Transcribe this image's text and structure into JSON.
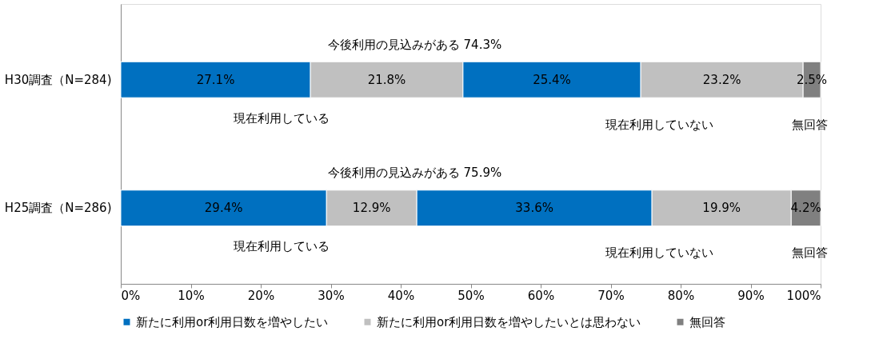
{
  "chart_data": {
    "type": "bar",
    "orientation": "horizontal",
    "stacked": true,
    "categories": [
      "H30調査（N=284)",
      "H25調査（N=286)"
    ],
    "series": [
      {
        "name": "新たに利用or利用日数を増やしたい",
        "color": "#0070c0",
        "values": [
          27.1,
          29.4
        ],
        "value_labels": [
          "27.1%",
          "29.4%"
        ]
      },
      {
        "name": "新たに利用or利用日数を増やしたいとは思わない",
        "color": "#c0c0c0",
        "values": [
          21.8,
          12.9
        ],
        "value_labels": [
          "21.8%",
          "12.9%"
        ]
      },
      {
        "color": "#0070c0",
        "values": [
          25.4,
          33.6
        ],
        "value_labels": [
          "25.4%",
          "33.6%"
        ]
      },
      {
        "color": "#c0c0c0",
        "values": [
          23.2,
          19.9
        ],
        "value_labels": [
          "23.2%",
          "19.9%"
        ]
      },
      {
        "name": "無回答",
        "color": "#808080",
        "values": [
          2.5,
          4.2
        ],
        "value_labels": [
          "2.5%",
          "4.2%"
        ]
      }
    ],
    "xlim": [
      0,
      100
    ],
    "xticks": [
      {
        "value": 0,
        "label": "0%"
      },
      {
        "value": 10,
        "label": "10%"
      },
      {
        "value": 20,
        "label": "20%"
      },
      {
        "value": 30,
        "label": "30%"
      },
      {
        "value": 40,
        "label": "40%"
      },
      {
        "value": 50,
        "label": "50%"
      },
      {
        "value": 60,
        "label": "60%"
      },
      {
        "value": 70,
        "label": "70%"
      },
      {
        "value": 80,
        "label": "80%"
      },
      {
        "value": 90,
        "label": "90%"
      },
      {
        "value": 100,
        "label": "100%"
      }
    ],
    "annotations": [
      "今後利用の見込みがある 74.3%",
      "現在利用している",
      "現在利用していない",
      "無回答",
      "今後利用の見込みがある 75.9%",
      "現在利用している",
      "現在利用していない",
      "無回答"
    ],
    "grid": false,
    "legend": "bottom"
  }
}
